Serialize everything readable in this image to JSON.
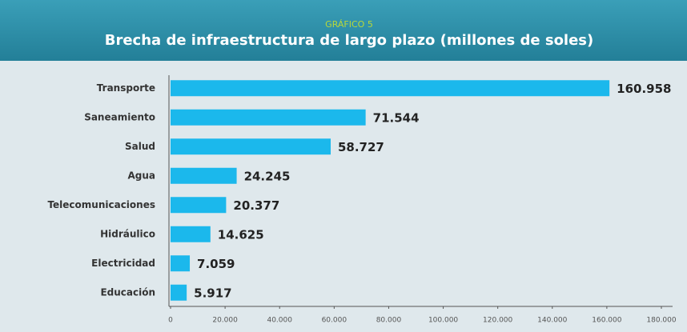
{
  "chart_data": {
    "type": "bar",
    "orientation": "horizontal",
    "subtitle": "GRÁFICO 5",
    "title": "Brecha de infraestructura de largo plazo (millones de soles)",
    "categories": [
      "Transporte",
      "Saneamiento",
      "Salud",
      "Agua",
      "Telecomunicaciones",
      "Hidráulico",
      "Electricidad",
      "Educación"
    ],
    "values": [
      160958,
      71544,
      58727,
      24245,
      20377,
      14625,
      7059,
      5917
    ],
    "value_labels": [
      "160.958",
      "71.544",
      "58.727",
      "24.245",
      "20.377",
      "14.625",
      "7.059",
      "5.917"
    ],
    "color": "#1bb8ec",
    "xlim": [
      0,
      180000
    ],
    "xticks": [
      0,
      {
        "value": 20000,
        "label": "20.000"
      },
      {
        "value": 40000,
        "label": "40.000"
      },
      {
        "value": 60000,
        "label": "60.000"
      },
      {
        "value": 80000,
        "label": "80.000"
      },
      {
        "value": 100000,
        "label": "100.000"
      },
      {
        "value": 120000,
        "label": "120.000"
      },
      {
        "value": 140000,
        "label": "140.000"
      },
      {
        "value": 160000,
        "label": "160.000"
      },
      {
        "value": 180000,
        "label": "180.000"
      }
    ],
    "grid": false
  }
}
